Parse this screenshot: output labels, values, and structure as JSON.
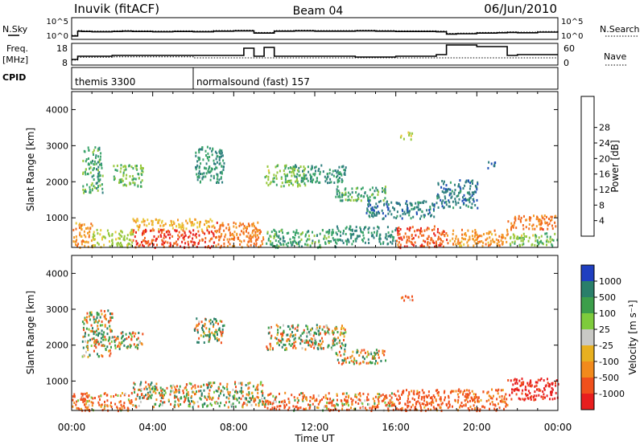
{
  "header": {
    "station": "Inuvik (fitACF)",
    "beam": "Beam 04",
    "date": "06/Jun/2010"
  },
  "strip_labels": {
    "nsky": "N.Sky",
    "nsky_ticks": [
      "10^5",
      "10^0"
    ],
    "nsearch": "N.Search",
    "nsearch_ticks": [
      "10^5",
      "10^0"
    ],
    "freq": "Freq.",
    "freq_unit": "[MHz]",
    "freq_ticks": [
      "18",
      "8"
    ],
    "nave": "Nave",
    "nave_ticks": [
      "60",
      "0"
    ],
    "cpid": "CPID"
  },
  "cpid_segments": [
    {
      "start_hour": 0,
      "label": "themis 3300"
    },
    {
      "start_hour": 6,
      "label": "normalsound (fast) 157"
    }
  ],
  "axes": {
    "x_label": "Time UT",
    "x_ticks": [
      "00:00",
      "04:00",
      "08:00",
      "12:00",
      "16:00",
      "20:00",
      "00:00"
    ],
    "y_label": "Slant Range [km]",
    "y_ticks": [
      "1000",
      "2000",
      "3000",
      "4000"
    ]
  },
  "colorbars": {
    "power": {
      "label": "Power [dB]",
      "ticks": [
        "4",
        "8",
        "12",
        "16",
        "20",
        "24",
        "28"
      ],
      "colors": [
        "#1a1aff",
        "#1f4fb5",
        "#2f7f7f",
        "#3aa36a",
        "#96c83c",
        "#e8c83a",
        "#f39a28",
        "#f26a1e",
        "#e8231e"
      ]
    },
    "velocity": {
      "label": "Velocity [m s⁻¹]",
      "ticks": [
        "1000",
        "500",
        "100",
        "25",
        "-25",
        "-100",
        "-500",
        "-1000"
      ],
      "colors": [
        "#1f3fc0",
        "#2a7f6a",
        "#3c9e4a",
        "#7ecb3c",
        "#c9c9c5",
        "#e8b020",
        "#f28a1c",
        "#f0501c",
        "#e81e1e"
      ]
    }
  },
  "chart_data": [
    {
      "type": "line",
      "name": "sky-noise-and-search-noise",
      "x_hours": [
        0,
        0.3,
        0.5,
        1,
        2,
        2.5,
        3,
        4,
        5,
        6,
        7,
        8,
        9,
        10,
        11,
        12,
        13,
        14,
        15,
        16,
        17,
        18,
        18.5,
        19,
        20,
        21,
        21.5,
        22,
        23,
        24
      ],
      "nsky_log10": [
        0.3,
        1.8,
        1.7,
        1.6,
        1.7,
        1.8,
        1.7,
        1.6,
        1.7,
        1.6,
        1.8,
        1.9,
        1.2,
        1.8,
        1.9,
        1.8,
        1.8,
        1.9,
        1.8,
        1.7,
        1.7,
        1.6,
        0.9,
        1.0,
        1.2,
        1.3,
        1.4,
        1.3,
        1.5,
        1.4
      ],
      "ylim_log10": [
        0,
        5
      ]
    },
    {
      "type": "line",
      "name": "frequency-and-nave",
      "x_hours": [
        0,
        0.3,
        2,
        4,
        6,
        7,
        7.5,
        8,
        8.5,
        9,
        9.5,
        10,
        13,
        14,
        15,
        16,
        18,
        18.5,
        19,
        20,
        21,
        21.5,
        22,
        23,
        24
      ],
      "freq_mhz": [
        10,
        12,
        12.5,
        12.5,
        12.5,
        12.5,
        12.5,
        12.5,
        17,
        12,
        17.5,
        12,
        12,
        11.5,
        11.5,
        12,
        13,
        19,
        19,
        18,
        18,
        12.5,
        13,
        13,
        13
      ],
      "nave": [
        10,
        20,
        22,
        22,
        18,
        18,
        18,
        18,
        18,
        18,
        18,
        18,
        18,
        18,
        18,
        18,
        18,
        18,
        18,
        18,
        18,
        18,
        18,
        18,
        18
      ],
      "freq_ylim": [
        8,
        18
      ],
      "nave_ylim": [
        0,
        60
      ]
    },
    {
      "type": "heatmap",
      "name": "power-panel",
      "xlabel": "",
      "ylabel": "Slant Range [km]",
      "xlim_hours": [
        0,
        24
      ],
      "ylim_km": [
        180,
        4500
      ],
      "zlabel": "Power [dB]",
      "zlim": [
        0,
        30
      ],
      "regions": [
        {
          "t0": 0.0,
          "t1": 1.0,
          "r0": 200,
          "r1": 900,
          "value": 22
        },
        {
          "t0": 1.0,
          "t1": 3.0,
          "r0": 200,
          "r1": 700,
          "value": 16
        },
        {
          "t0": 3.0,
          "t1": 7.0,
          "r0": 200,
          "r1": 700,
          "value": 27
        },
        {
          "t0": 3.0,
          "t1": 7.0,
          "r0": 700,
          "r1": 1000,
          "value": 20
        },
        {
          "t0": 7.0,
          "t1": 9.5,
          "r0": 200,
          "r1": 900,
          "value": 24
        },
        {
          "t0": 9.5,
          "t1": 13.0,
          "r0": 200,
          "r1": 700,
          "value": 12
        },
        {
          "t0": 13.0,
          "t1": 16.0,
          "r0": 300,
          "r1": 800,
          "value": 10
        },
        {
          "t0": 16.0,
          "t1": 18.5,
          "r0": 200,
          "r1": 800,
          "value": 26
        },
        {
          "t0": 18.5,
          "t1": 21.5,
          "r0": 250,
          "r1": 700,
          "value": 22
        },
        {
          "t0": 21.5,
          "t1": 24.0,
          "r0": 700,
          "r1": 1100,
          "value": 24
        },
        {
          "t0": 21.5,
          "t1": 24.0,
          "r0": 250,
          "r1": 600,
          "value": 14
        },
        {
          "t0": 0.5,
          "t1": 1.5,
          "r0": 1700,
          "r1": 3000,
          "value": 12
        },
        {
          "t0": 2.0,
          "t1": 3.5,
          "r0": 1900,
          "r1": 2500,
          "value": 14
        },
        {
          "t0": 6.0,
          "t1": 7.5,
          "r0": 2000,
          "r1": 3000,
          "value": 10
        },
        {
          "t0": 9.5,
          "t1": 11.5,
          "r0": 1900,
          "r1": 2500,
          "value": 14
        },
        {
          "t0": 11.0,
          "t1": 13.5,
          "r0": 2000,
          "r1": 2500,
          "value": 10
        },
        {
          "t0": 13.0,
          "t1": 15.5,
          "r0": 1500,
          "r1": 1900,
          "value": 12
        },
        {
          "t0": 14.5,
          "t1": 18.0,
          "r0": 1000,
          "r1": 1500,
          "value": 8
        },
        {
          "t0": 18.0,
          "t1": 20.0,
          "r0": 1300,
          "r1": 2100,
          "value": 8
        },
        {
          "t0": 16.2,
          "t1": 16.8,
          "r0": 3200,
          "r1": 3400,
          "value": 16
        },
        {
          "t0": 20.5,
          "t1": 21.0,
          "r0": 2400,
          "r1": 2600,
          "value": 6
        }
      ]
    },
    {
      "type": "heatmap",
      "name": "velocity-panel",
      "xlabel": "Time UT",
      "ylabel": "Slant Range [km]",
      "xlim_hours": [
        0,
        24
      ],
      "ylim_km": [
        180,
        4500
      ],
      "zlabel": "Velocity [m s⁻¹]",
      "zlim": [
        -1000,
        1000
      ],
      "regions": [
        {
          "t0": 0.0,
          "t1": 3.0,
          "r0": 200,
          "r1": 700,
          "value": -150
        },
        {
          "t0": 3.0,
          "t1": 9.5,
          "r0": 300,
          "r1": 1000,
          "value": 0
        },
        {
          "t0": 9.5,
          "t1": 16.0,
          "r0": 200,
          "r1": 700,
          "value": -120
        },
        {
          "t0": 16.0,
          "t1": 21.5,
          "r0": 200,
          "r1": 800,
          "value": -200
        },
        {
          "t0": 21.5,
          "t1": 24.0,
          "r0": 500,
          "r1": 1100,
          "value": -600
        },
        {
          "t0": 0.5,
          "t1": 2.0,
          "r0": 1700,
          "r1": 3000,
          "value": 0
        },
        {
          "t0": 2.0,
          "t1": 3.5,
          "r0": 1900,
          "r1": 2400,
          "value": 0
        },
        {
          "t0": 9.5,
          "t1": 13.5,
          "r0": 1900,
          "r1": 2600,
          "value": 0
        },
        {
          "t0": 13.0,
          "t1": 15.5,
          "r0": 1500,
          "r1": 1900,
          "value": 0
        },
        {
          "t0": 16.2,
          "t1": 16.8,
          "r0": 3200,
          "r1": 3400,
          "value": -150
        },
        {
          "t0": 6.0,
          "t1": 7.5,
          "r0": 2100,
          "r1": 2800,
          "value": 20
        }
      ]
    }
  ]
}
